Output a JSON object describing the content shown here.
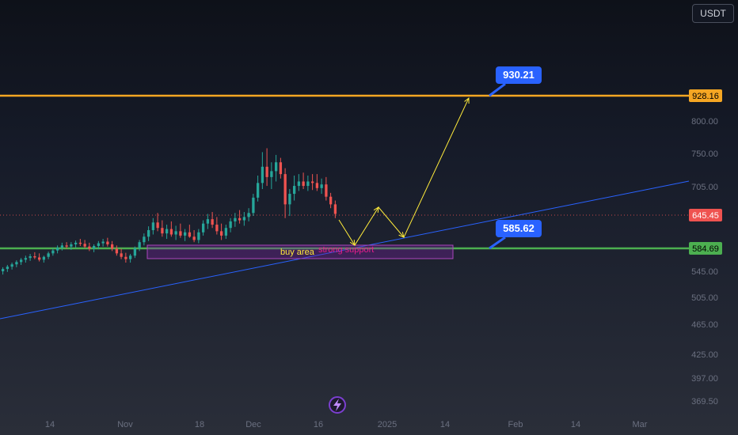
{
  "currency_button": "USDT",
  "chart_data": {
    "type": "candlestick",
    "y_ticks": [
      "928.16",
      "800.00",
      "750.00",
      "705.00",
      "645.45",
      "584.69",
      "545.00",
      "505.00",
      "465.00",
      "425.00",
      "397.00",
      "369.50"
    ],
    "x_ticks": [
      "14",
      "Nov",
      "18",
      "Dec",
      "16",
      "2025",
      "14",
      "Feb",
      "14",
      "Mar"
    ],
    "horizontal_lines": [
      {
        "price": 928.16,
        "color": "#f5a623",
        "label": "928.16"
      },
      {
        "price": 584.69,
        "color": "#4caf50",
        "label": "584.69"
      }
    ],
    "current_price": {
      "price": 645.45,
      "color": "#ef5350",
      "label": "645.45"
    },
    "callouts": [
      {
        "text": "930.21",
        "color": "#2962ff"
      },
      {
        "text": "585.62",
        "color": "#2962ff"
      }
    ],
    "zone": {
      "labels": [
        "buy area",
        "strong support"
      ],
      "colors": [
        "#ffeb3b",
        "#e91e8c"
      ],
      "fill": "#7b1fa2"
    },
    "trendline": {
      "color": "#2962ff"
    },
    "projection_color": "#ffeb3b",
    "candles": [
      {
        "o": 545,
        "h": 552,
        "l": 540,
        "c": 549
      },
      {
        "o": 549,
        "h": 556,
        "l": 544,
        "c": 553
      },
      {
        "o": 553,
        "h": 560,
        "l": 548,
        "c": 557
      },
      {
        "o": 557,
        "h": 564,
        "l": 552,
        "c": 561
      },
      {
        "o": 561,
        "h": 568,
        "l": 556,
        "c": 565
      },
      {
        "o": 565,
        "h": 572,
        "l": 560,
        "c": 568
      },
      {
        "o": 568,
        "h": 575,
        "l": 563,
        "c": 571
      },
      {
        "o": 571,
        "h": 578,
        "l": 566,
        "c": 569
      },
      {
        "o": 569,
        "h": 576,
        "l": 562,
        "c": 565
      },
      {
        "o": 565,
        "h": 572,
        "l": 560,
        "c": 570
      },
      {
        "o": 570,
        "h": 579,
        "l": 566,
        "c": 576
      },
      {
        "o": 576,
        "h": 585,
        "l": 572,
        "c": 581
      },
      {
        "o": 581,
        "h": 590,
        "l": 576,
        "c": 586
      },
      {
        "o": 586,
        "h": 595,
        "l": 581,
        "c": 590
      },
      {
        "o": 590,
        "h": 596,
        "l": 584,
        "c": 588
      },
      {
        "o": 588,
        "h": 596,
        "l": 582,
        "c": 592
      },
      {
        "o": 592,
        "h": 599,
        "l": 586,
        "c": 595
      },
      {
        "o": 595,
        "h": 602,
        "l": 589,
        "c": 593
      },
      {
        "o": 593,
        "h": 600,
        "l": 585,
        "c": 588
      },
      {
        "o": 588,
        "h": 595,
        "l": 580,
        "c": 584
      },
      {
        "o": 584,
        "h": 592,
        "l": 578,
        "c": 589
      },
      {
        "o": 589,
        "h": 598,
        "l": 583,
        "c": 594
      },
      {
        "o": 594,
        "h": 602,
        "l": 588,
        "c": 597
      },
      {
        "o": 597,
        "h": 604,
        "l": 588,
        "c": 592
      },
      {
        "o": 592,
        "h": 598,
        "l": 580,
        "c": 584
      },
      {
        "o": 584,
        "h": 590,
        "l": 572,
        "c": 576
      },
      {
        "o": 576,
        "h": 584,
        "l": 566,
        "c": 570
      },
      {
        "o": 570,
        "h": 577,
        "l": 560,
        "c": 566
      },
      {
        "o": 566,
        "h": 575,
        "l": 560,
        "c": 572
      },
      {
        "o": 572,
        "h": 588,
        "l": 568,
        "c": 585
      },
      {
        "o": 585,
        "h": 600,
        "l": 580,
        "c": 596
      },
      {
        "o": 596,
        "h": 612,
        "l": 590,
        "c": 606
      },
      {
        "o": 606,
        "h": 625,
        "l": 598,
        "c": 618
      },
      {
        "o": 618,
        "h": 640,
        "l": 610,
        "c": 632
      },
      {
        "o": 632,
        "h": 650,
        "l": 616,
        "c": 622
      },
      {
        "o": 622,
        "h": 636,
        "l": 606,
        "c": 612
      },
      {
        "o": 612,
        "h": 628,
        "l": 602,
        "c": 620
      },
      {
        "o": 620,
        "h": 634,
        "l": 606,
        "c": 610
      },
      {
        "o": 610,
        "h": 626,
        "l": 600,
        "c": 616
      },
      {
        "o": 616,
        "h": 630,
        "l": 604,
        "c": 608
      },
      {
        "o": 608,
        "h": 620,
        "l": 598,
        "c": 614
      },
      {
        "o": 614,
        "h": 628,
        "l": 604,
        "c": 606
      },
      {
        "o": 606,
        "h": 618,
        "l": 596,
        "c": 600
      },
      {
        "o": 600,
        "h": 620,
        "l": 594,
        "c": 614
      },
      {
        "o": 614,
        "h": 636,
        "l": 608,
        "c": 630
      },
      {
        "o": 630,
        "h": 648,
        "l": 620,
        "c": 638
      },
      {
        "o": 638,
        "h": 652,
        "l": 622,
        "c": 628
      },
      {
        "o": 628,
        "h": 642,
        "l": 610,
        "c": 616
      },
      {
        "o": 616,
        "h": 630,
        "l": 600,
        "c": 608
      },
      {
        "o": 608,
        "h": 628,
        "l": 602,
        "c": 622
      },
      {
        "o": 622,
        "h": 640,
        "l": 614,
        "c": 634
      },
      {
        "o": 634,
        "h": 650,
        "l": 624,
        "c": 640
      },
      {
        "o": 640,
        "h": 656,
        "l": 630,
        "c": 636
      },
      {
        "o": 636,
        "h": 652,
        "l": 626,
        "c": 642
      },
      {
        "o": 642,
        "h": 660,
        "l": 634,
        "c": 650
      },
      {
        "o": 650,
        "h": 690,
        "l": 644,
        "c": 682
      },
      {
        "o": 682,
        "h": 720,
        "l": 674,
        "c": 710
      },
      {
        "o": 710,
        "h": 752,
        "l": 700,
        "c": 732
      },
      {
        "o": 732,
        "h": 758,
        "l": 706,
        "c": 718
      },
      {
        "o": 718,
        "h": 738,
        "l": 700,
        "c": 726
      },
      {
        "o": 726,
        "h": 748,
        "l": 712,
        "c": 738
      },
      {
        "o": 738,
        "h": 744,
        "l": 716,
        "c": 722
      },
      {
        "o": 722,
        "h": 730,
        "l": 640,
        "c": 668
      },
      {
        "o": 668,
        "h": 700,
        "l": 644,
        "c": 690
      },
      {
        "o": 690,
        "h": 720,
        "l": 676,
        "c": 706
      },
      {
        "o": 706,
        "h": 722,
        "l": 696,
        "c": 712
      },
      {
        "o": 712,
        "h": 724,
        "l": 700,
        "c": 706
      },
      {
        "o": 706,
        "h": 720,
        "l": 696,
        "c": 712
      },
      {
        "o": 712,
        "h": 722,
        "l": 698,
        "c": 710
      },
      {
        "o": 710,
        "h": 722,
        "l": 696,
        "c": 702
      },
      {
        "o": 702,
        "h": 716,
        "l": 690,
        "c": 708
      },
      {
        "o": 708,
        "h": 718,
        "l": 676,
        "c": 684
      },
      {
        "o": 684,
        "h": 692,
        "l": 660,
        "c": 668
      },
      {
        "o": 668,
        "h": 676,
        "l": 640,
        "c": 648
      }
    ]
  }
}
